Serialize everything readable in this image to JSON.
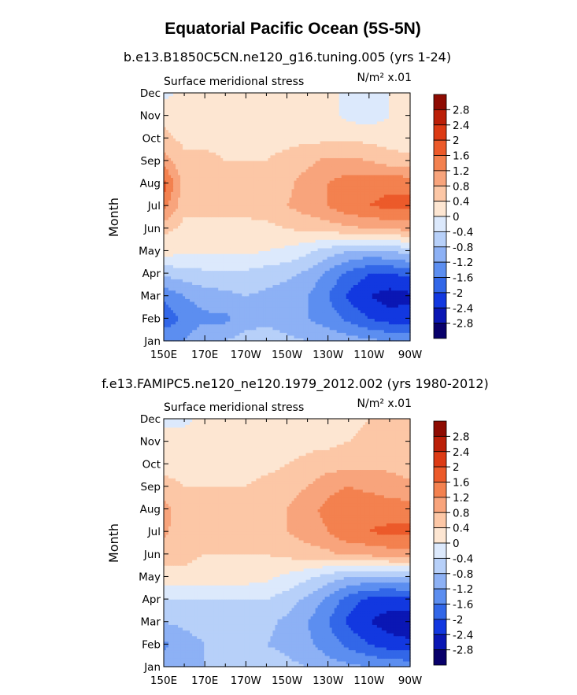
{
  "figure_title": "Equatorial Pacific Ocean (5S-5N)",
  "colors": {
    "levels": [
      "#08006b",
      "#0a17b4",
      "#1238e0",
      "#3267e8",
      "#5c8ef0",
      "#8db1f5",
      "#b7d0f9",
      "#dce9fc",
      "#fde6d2",
      "#fcc7a6",
      "#f8a47c",
      "#f3814f",
      "#ec5a2a",
      "#dc3a14",
      "#bb1f08",
      "#8e0b02"
    ]
  },
  "chart_data": [
    {
      "type": "heatmap",
      "title": "b.e13.B1850C5CN.ne120_g16.tuning.005 (yrs 1-24)",
      "variable": "Surface meridional stress",
      "units": "N/m² x.01",
      "xlabel": "",
      "ylabel": "Month",
      "x_ticks": [
        "150E",
        "170E",
        "170W",
        "150W",
        "130W",
        "110W",
        "90W"
      ],
      "y_ticks": [
        "Jan",
        "Feb",
        "Mar",
        "Apr",
        "May",
        "Jun",
        "Jul",
        "Aug",
        "Sep",
        "Oct",
        "Nov",
        "Dec"
      ],
      "colorbar_labels": [
        "2.8",
        "2.4",
        "2",
        "1.6",
        "1.2",
        "0.8",
        "0.4",
        "0",
        "-0.4",
        "-0.8",
        "-1.2",
        "-1.6",
        "-2",
        "-2.4",
        "-2.8"
      ],
      "contour_levels": [
        -2.8,
        -2.4,
        -2,
        -1.6,
        -1.2,
        -0.8,
        -0.4,
        0,
        0.4,
        0.8,
        1.2,
        1.6,
        2,
        2.4,
        2.8
      ],
      "x_values": [
        150,
        160,
        170,
        180,
        190,
        200,
        210,
        220,
        230,
        240,
        250,
        260,
        270
      ],
      "values_by_month": [
        [
          -1.2,
          -1.2,
          -0.8,
          -0.8,
          -0.6,
          -0.6,
          -0.7,
          -0.8,
          -0.9,
          -1.0,
          -1.1,
          -1.2,
          -1.2
        ],
        [
          -1.9,
          -1.5,
          -1.3,
          -1.3,
          -1.0,
          -0.9,
          -1.0,
          -1.2,
          -1.4,
          -1.7,
          -2.0,
          -2.2,
          -2.2
        ],
        [
          -1.5,
          -1.2,
          -1.0,
          -0.9,
          -0.8,
          -0.9,
          -1.0,
          -1.2,
          -1.6,
          -2.1,
          -2.4,
          -2.6,
          -2.5
        ],
        [
          -0.7,
          -0.6,
          -0.5,
          -0.5,
          -0.5,
          -0.6,
          -0.7,
          -0.9,
          -1.3,
          -1.7,
          -2.0,
          -2.0,
          -1.9
        ],
        [
          0.2,
          0.1,
          0.1,
          0.1,
          0.1,
          0.0,
          -0.1,
          -0.3,
          -0.6,
          -0.8,
          -0.9,
          -0.8,
          -0.6
        ],
        [
          0.5,
          0.3,
          0.3,
          0.3,
          0.3,
          0.3,
          0.4,
          0.5,
          0.6,
          0.7,
          0.8,
          0.9,
          0.9
        ],
        [
          1.4,
          0.5,
          0.5,
          0.5,
          0.5,
          0.6,
          0.8,
          1.0,
          1.2,
          1.5,
          1.6,
          1.7,
          1.7
        ],
        [
          1.8,
          0.6,
          0.5,
          0.5,
          0.5,
          0.6,
          0.7,
          1.0,
          1.2,
          1.4,
          1.5,
          1.5,
          1.5
        ],
        [
          1.0,
          0.5,
          0.5,
          0.4,
          0.4,
          0.4,
          0.5,
          0.7,
          0.9,
          0.9,
          0.8,
          0.6,
          0.5
        ],
        [
          0.5,
          0.3,
          0.3,
          0.3,
          0.3,
          0.3,
          0.3,
          0.3,
          0.3,
          0.3,
          0.3,
          0.2,
          0.2
        ],
        [
          0.3,
          0.2,
          0.2,
          0.2,
          0.2,
          0.2,
          0.2,
          0.2,
          0.1,
          -0.1,
          -0.2,
          0.0,
          0.1
        ],
        [
          -0.1,
          0.1,
          0.2,
          0.2,
          0.2,
          0.2,
          0.2,
          0.1,
          0.1,
          -0.1,
          -0.1,
          0.0,
          0.0
        ]
      ]
    },
    {
      "type": "heatmap",
      "title": "f.e13.FAMIPC5.ne120_ne120.1979_2012.002 (yrs 1980-2012)",
      "variable": "Surface meridional stress",
      "units": "N/m² x.01",
      "xlabel": "",
      "ylabel": "Month",
      "x_ticks": [
        "150E",
        "170E",
        "170W",
        "150W",
        "130W",
        "110W",
        "90W"
      ],
      "y_ticks": [
        "Jan",
        "Feb",
        "Mar",
        "Apr",
        "May",
        "Jun",
        "Jul",
        "Aug",
        "Sep",
        "Oct",
        "Nov",
        "Dec"
      ],
      "colorbar_labels": [
        "2.8",
        "2.4",
        "2",
        "1.6",
        "1.2",
        "0.8",
        "0.4",
        "0",
        "-0.4",
        "-0.8",
        "-1.2",
        "-1.6",
        "-2",
        "-2.4",
        "-2.8"
      ],
      "contour_levels": [
        -2.8,
        -2.4,
        -2,
        -1.6,
        -1.2,
        -0.8,
        -0.4,
        0,
        0.4,
        0.8,
        1.2,
        1.6,
        2,
        2.4,
        2.8
      ],
      "x_values": [
        150,
        160,
        170,
        180,
        190,
        200,
        210,
        220,
        230,
        240,
        250,
        260,
        270
      ],
      "values_by_month": [
        [
          -1.0,
          -0.9,
          -0.8,
          -0.7,
          -0.6,
          -0.6,
          -0.7,
          -0.8,
          -1.0,
          -1.1,
          -1.2,
          -1.3,
          -1.3
        ],
        [
          -1.3,
          -1.0,
          -0.8,
          -0.8,
          -0.8,
          -0.8,
          -0.9,
          -1.1,
          -1.4,
          -1.7,
          -2.0,
          -2.2,
          -2.3
        ],
        [
          -0.8,
          -0.7,
          -0.6,
          -0.6,
          -0.6,
          -0.7,
          -0.9,
          -1.2,
          -1.6,
          -2.1,
          -2.4,
          -2.6,
          -2.7
        ],
        [
          -0.4,
          -0.4,
          -0.4,
          -0.4,
          -0.4,
          -0.4,
          -0.6,
          -0.9,
          -1.3,
          -1.8,
          -2.1,
          -2.2,
          -2.1
        ],
        [
          0.3,
          0.3,
          0.2,
          0.2,
          0.2,
          0.1,
          -0.1,
          -0.3,
          -0.6,
          -0.8,
          -0.9,
          -0.9,
          -0.8
        ],
        [
          0.5,
          0.5,
          0.4,
          0.4,
          0.4,
          0.4,
          0.5,
          0.6,
          0.7,
          0.9,
          0.9,
          1.0,
          1.0
        ],
        [
          0.9,
          0.5,
          0.5,
          0.5,
          0.5,
          0.6,
          0.8,
          1.0,
          1.2,
          1.5,
          1.6,
          1.7,
          1.7
        ],
        [
          1.0,
          0.5,
          0.5,
          0.5,
          0.5,
          0.6,
          0.8,
          1.1,
          1.3,
          1.5,
          1.5,
          1.4,
          1.4
        ],
        [
          0.5,
          0.4,
          0.4,
          0.4,
          0.4,
          0.5,
          0.6,
          0.8,
          1.1,
          1.2,
          1.1,
          1.0,
          0.9
        ],
        [
          0.3,
          0.3,
          0.3,
          0.3,
          0.3,
          0.3,
          0.4,
          0.5,
          0.6,
          0.7,
          0.7,
          0.7,
          0.6
        ],
        [
          0.2,
          0.2,
          0.2,
          0.2,
          0.2,
          0.2,
          0.2,
          0.3,
          0.3,
          0.4,
          0.5,
          0.5,
          0.5
        ],
        [
          -0.1,
          -0.1,
          0.1,
          0.2,
          0.2,
          0.2,
          0.2,
          0.2,
          0.2,
          0.3,
          0.4,
          0.4,
          0.4
        ]
      ]
    }
  ]
}
